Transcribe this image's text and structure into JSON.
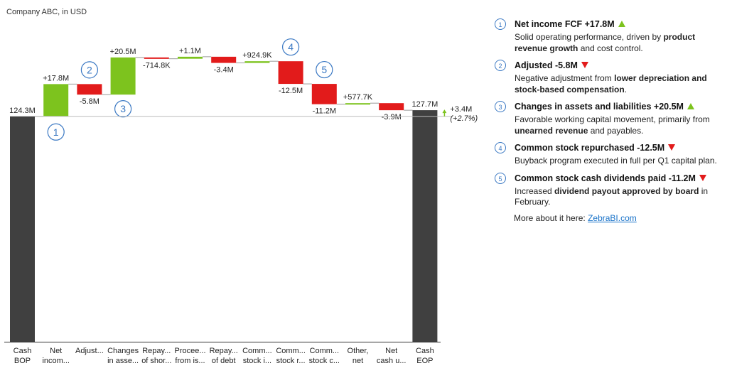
{
  "chart_data": {
    "type": "waterfall",
    "subtitle": "Company ABC, in USD",
    "unit": "M",
    "start": {
      "label_lines": [
        "Cash",
        "BOP"
      ],
      "value": 124.3,
      "value_label": "124.3M"
    },
    "end": {
      "label_lines": [
        "Cash",
        "EOP"
      ],
      "value": 127.7,
      "value_label": "127.7M"
    },
    "steps": [
      {
        "label_lines": [
          "Net",
          "incom..."
        ],
        "value": 17.8,
        "value_label": "+17.8M",
        "marker": "1"
      },
      {
        "label_lines": [
          "Adjust..."
        ],
        "value": -5.8,
        "value_label": "-5.8M",
        "marker": "2"
      },
      {
        "label_lines": [
          "Changes",
          "in asse..."
        ],
        "value": 20.5,
        "value_label": "+20.5M",
        "marker": "3"
      },
      {
        "label_lines": [
          "Repay...",
          "of shor..."
        ],
        "value": -0.7148,
        "value_label": "-714.8K"
      },
      {
        "label_lines": [
          "Procee...",
          "from is..."
        ],
        "value": 1.1,
        "value_label": "+1.1M"
      },
      {
        "label_lines": [
          "Repay...",
          "of debt"
        ],
        "value": -3.4,
        "value_label": "-3.4M"
      },
      {
        "label_lines": [
          "Comm...",
          "stock i..."
        ],
        "value": 0.9249,
        "value_label": "+924.9K"
      },
      {
        "label_lines": [
          "Comm...",
          "stock r..."
        ],
        "value": -12.5,
        "value_label": "-12.5M",
        "marker": "4"
      },
      {
        "label_lines": [
          "Comm...",
          "stock c..."
        ],
        "value": -11.2,
        "value_label": "-11.2M",
        "marker": "5"
      },
      {
        "label_lines": [
          "Other,",
          "net"
        ],
        "value": 0.5777,
        "value_label": "+577.7K"
      },
      {
        "label_lines": [
          "Net",
          "cash u..."
        ],
        "value": -3.9,
        "value_label": "-3.9M"
      }
    ],
    "variance": {
      "label": "+3.4M",
      "pct_label": "(+2.7%)"
    },
    "colors": {
      "total": "#404040",
      "positive": "#7dc31e",
      "negative": "#e21b1b",
      "marker": "#3a78c3",
      "connector": "#9a9a9a"
    }
  },
  "notes": [
    {
      "num": "1",
      "title": "Net income FCF +17.8M",
      "dir": "up",
      "body": [
        {
          "t": "Solid operating performance, driven by "
        },
        {
          "t": "product revenue growth",
          "b": true
        },
        {
          "t": " and cost control."
        }
      ]
    },
    {
      "num": "2",
      "title": "Adjusted -5.8M",
      "dir": "down",
      "body": [
        {
          "t": "Negative adjustment from "
        },
        {
          "t": "lower depreciation and stock-based compensation",
          "b": true
        },
        {
          "t": "."
        }
      ]
    },
    {
      "num": "3",
      "title": "Changes in assets and liabilities +20.5M",
      "dir": "up",
      "body": [
        {
          "t": "Favorable working capital movement, primarily from "
        },
        {
          "t": "unearned revenue",
          "b": true
        },
        {
          "t": " and payables."
        }
      ]
    },
    {
      "num": "4",
      "title": "Common stock repurchased -12.5M",
      "dir": "down",
      "body": [
        {
          "t": "Buyback program executed in full per Q1 capital plan."
        }
      ]
    },
    {
      "num": "5",
      "title": "Common stock cash dividends paid -11.2M",
      "dir": "down",
      "body": [
        {
          "t": "Increased "
        },
        {
          "t": "dividend payout approved by board",
          "b": true
        },
        {
          "t": " in February."
        }
      ]
    }
  ],
  "more": {
    "text": "More about it here: ",
    "link": "ZebraBI.com"
  }
}
